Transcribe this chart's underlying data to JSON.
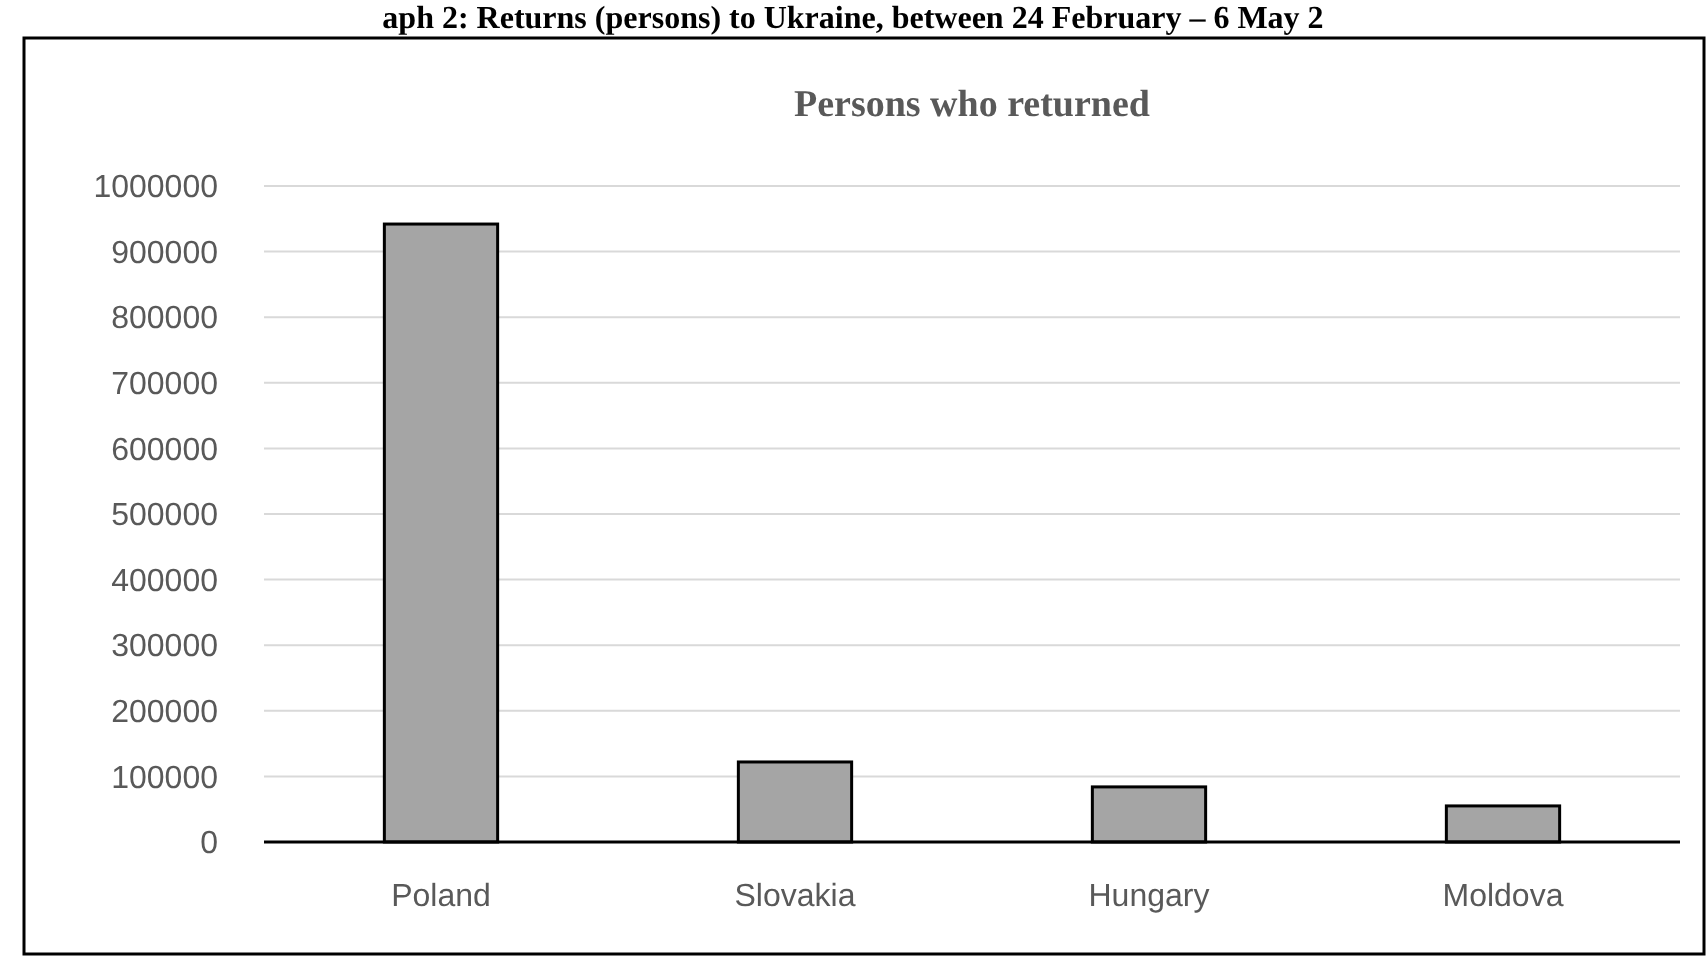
{
  "chart_data": {
    "type": "bar",
    "subtitle": "aph 2: Returns (persons) to Ukraine, between 24 February – 6 May 2",
    "title": "Persons who returned",
    "categories": [
      "Poland",
      "Slovakia",
      "Hungary",
      "Moldova"
    ],
    "values": [
      942000,
      122000,
      84000,
      55000
    ],
    "color": "#a5a5a5",
    "ylim": [
      0,
      1000000
    ],
    "yticks": [
      0,
      100000,
      200000,
      300000,
      400000,
      500000,
      600000,
      700000,
      800000,
      900000,
      1000000
    ],
    "grid": "y"
  }
}
